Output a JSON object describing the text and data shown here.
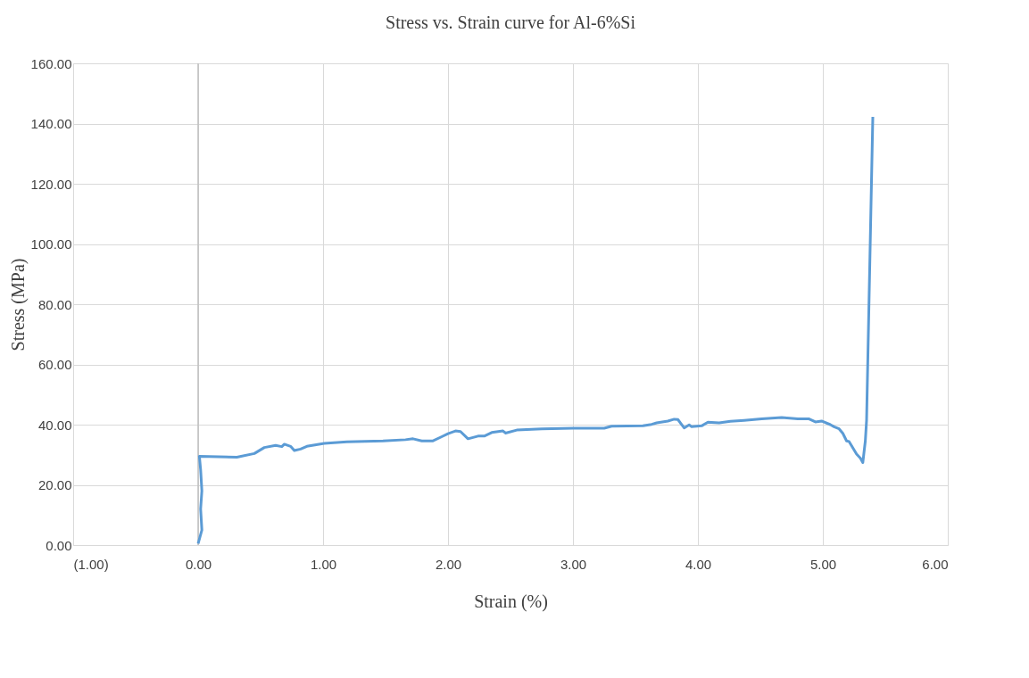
{
  "chart_data": {
    "type": "line",
    "title": "Stress vs. Strain curve for Al-6%Si",
    "xlabel": "Strain (%)",
    "ylabel": "Stress (MPa)",
    "xlim": [
      -1,
      6
    ],
    "xticks": [
      {
        "value": -1,
        "label": "(1.00)"
      },
      {
        "value": 0,
        "label": "0.00"
      },
      {
        "value": 1,
        "label": "1.00"
      },
      {
        "value": 2,
        "label": "2.00"
      },
      {
        "value": 3,
        "label": "3.00"
      },
      {
        "value": 4,
        "label": "4.00"
      },
      {
        "value": 5,
        "label": "5.00"
      },
      {
        "value": 6,
        "label": "6.00"
      }
    ],
    "ylim": [
      0,
      160
    ],
    "yticks": [
      {
        "value": 0,
        "label": "0.00"
      },
      {
        "value": 20,
        "label": "20.00"
      },
      {
        "value": 40,
        "label": "40.00"
      },
      {
        "value": 60,
        "label": "60.00"
      },
      {
        "value": 80,
        "label": "80.00"
      },
      {
        "value": 100,
        "label": "100.00"
      },
      {
        "value": 120,
        "label": "120.00"
      },
      {
        "value": 140,
        "label": "140.00"
      },
      {
        "value": 160,
        "label": "160.00"
      }
    ],
    "grid": true,
    "series": [
      {
        "color": "#5b9bd5",
        "x": [
          0.0,
          0.03,
          0.02,
          0.03,
          0.02,
          0.01,
          0.31,
          0.45,
          0.53,
          0.62,
          0.67,
          0.69,
          0.74,
          0.77,
          0.82,
          0.87,
          1.01,
          1.19,
          1.48,
          1.66,
          1.72,
          1.79,
          1.88,
          1.95,
          2.0,
          2.06,
          2.1,
          2.16,
          2.24,
          2.29,
          2.35,
          2.44,
          2.46,
          2.55,
          2.75,
          3.0,
          3.25,
          3.31,
          3.56,
          3.63,
          3.67,
          3.76,
          3.81,
          3.84,
          3.89,
          3.93,
          3.95,
          4.03,
          4.08,
          4.17,
          4.26,
          4.37,
          4.51,
          4.67,
          4.8,
          4.89,
          4.94,
          4.99,
          5.06,
          5.09,
          5.13,
          5.16,
          5.19,
          5.21,
          5.27,
          5.3,
          5.32,
          5.34,
          5.35,
          5.4
        ],
        "values": [
          0.5,
          5,
          12,
          18,
          25,
          29.5,
          29.2,
          30.4,
          32.4,
          33.1,
          32.7,
          33.5,
          32.8,
          31.4,
          31.9,
          32.8,
          33.8,
          34.3,
          34.6,
          35.0,
          35.3,
          34.6,
          34.6,
          36.0,
          37.0,
          37.9,
          37.7,
          35.3,
          36.2,
          36.2,
          37.4,
          37.9,
          37.2,
          38.2,
          38.6,
          38.8,
          38.8,
          39.5,
          39.6,
          40.1,
          40.6,
          41.2,
          41.8,
          41.7,
          38.9,
          39.9,
          39.3,
          39.6,
          40.8,
          40.6,
          41.1,
          41.4,
          41.9,
          42.4,
          41.9,
          41.9,
          40.9,
          41.2,
          40.0,
          39.3,
          38.6,
          37.1,
          34.6,
          34.4,
          30.2,
          28.9,
          27.4,
          34.6,
          41.4,
          142.2
        ]
      }
    ]
  }
}
